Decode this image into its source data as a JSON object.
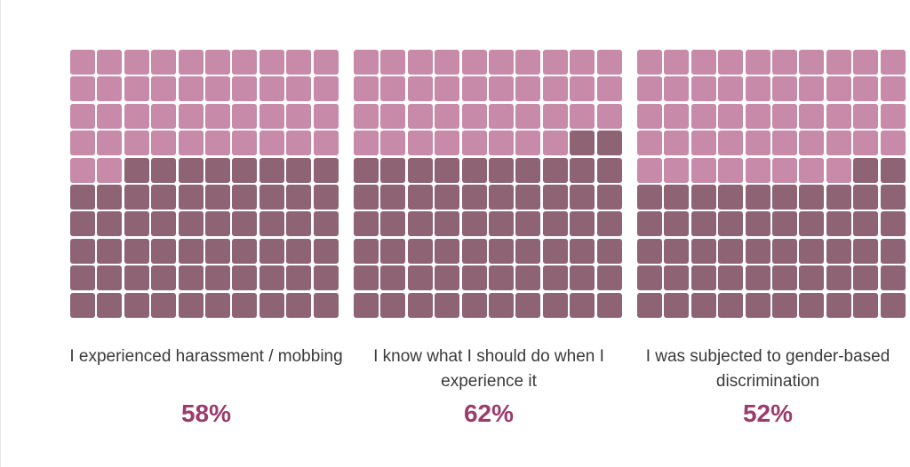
{
  "colors": {
    "filled": "#8e6374",
    "empty": "#c78aa9",
    "percent_text": "#9c3b6e"
  },
  "chart_data": [
    {
      "type": "waffle",
      "grid": [
        10,
        10
      ],
      "value": 58,
      "caption": "I experienced harassment / mobbing",
      "percent_label": "58%"
    },
    {
      "type": "waffle",
      "grid": [
        10,
        10
      ],
      "value": 62,
      "caption": "I know what I should do when I experience it",
      "percent_label": "62%"
    },
    {
      "type": "waffle",
      "grid": [
        10,
        10
      ],
      "value": 52,
      "caption": "I was subjected to gender-based discrimination",
      "percent_label": "52%"
    }
  ]
}
